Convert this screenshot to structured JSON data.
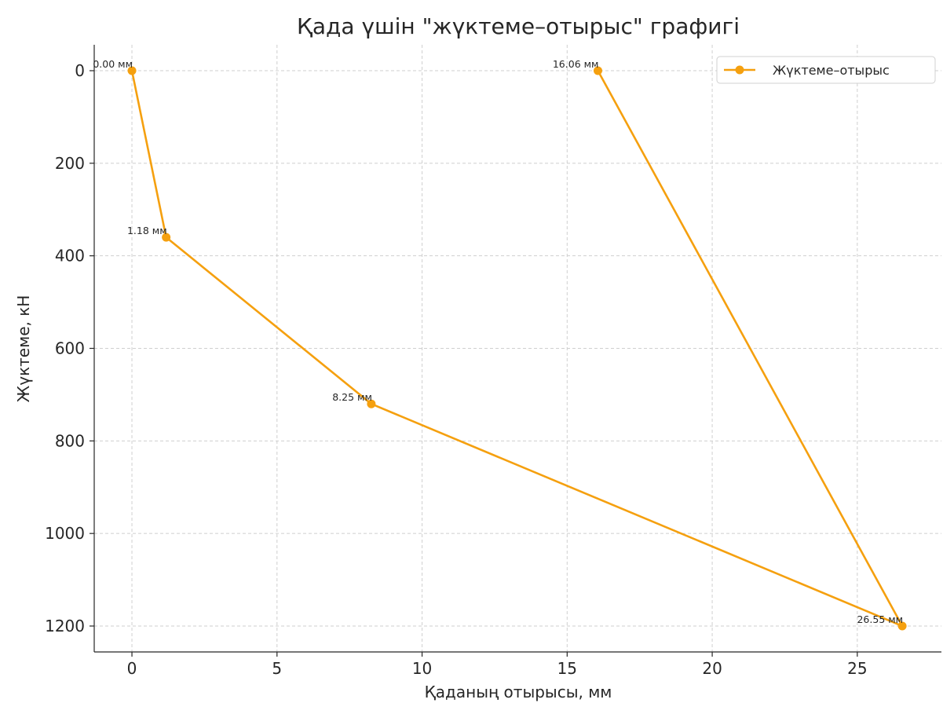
{
  "chart_data": {
    "type": "line",
    "title": "Қада үшін \"жүктеме–отырыс\" графигі",
    "xlabel": "Қаданың отырысы, мм",
    "ylabel": "Жүктеме, кН",
    "xlim": [
      -1.3,
      27.9
    ],
    "ylim": [
      1256,
      -56
    ],
    "y_inverted": true,
    "x_ticks": [
      0,
      5,
      10,
      15,
      20,
      25
    ],
    "x_tick_labels": [
      "0",
      "5",
      "10",
      "15",
      "20",
      "25"
    ],
    "y_ticks": [
      0,
      200,
      400,
      600,
      800,
      1000,
      1200
    ],
    "y_tick_labels": [
      "0",
      "200",
      "400",
      "600",
      "800",
      "1000",
      "1200"
    ],
    "grid": true,
    "legend_position": "top-right",
    "series": [
      {
        "name": "Жүктеме–отырыс",
        "color": "#f5a00f",
        "marker": "circle",
        "points": [
          {
            "x": 0.0,
            "y": 0,
            "label": "0.00 мм"
          },
          {
            "x": 1.18,
            "y": 360,
            "label": "1.18 мм"
          },
          {
            "x": 8.25,
            "y": 720,
            "label": "8.25 мм"
          },
          {
            "x": 26.55,
            "y": 1200,
            "label": "26.55 мм"
          },
          {
            "x": 16.06,
            "y": 0,
            "label": "16.06 мм"
          }
        ]
      }
    ]
  }
}
